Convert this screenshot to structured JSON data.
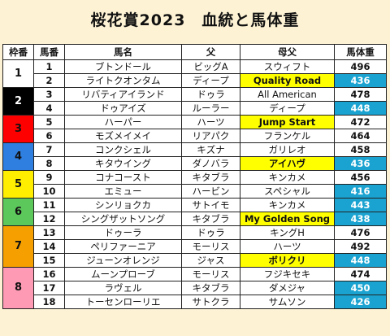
{
  "title": "桜花賞2023　血統と馬体重",
  "headers": [
    "枠番",
    "馬番",
    "馬名",
    "父",
    "母父",
    "馬体重"
  ],
  "colors": {
    "background": "#fdf2d4",
    "highlight_yellow": "#ffff00",
    "highlight_weight": "#1aa3d0"
  },
  "waku": [
    {
      "label": "1",
      "rows": 2,
      "bg": "#ffffff",
      "fg": "#111111"
    },
    {
      "label": "2",
      "rows": 2,
      "bg": "#000000",
      "fg": "#ffffff"
    },
    {
      "label": "3",
      "rows": 2,
      "bg": "#ff0000",
      "fg": "#111111"
    },
    {
      "label": "4",
      "rows": 2,
      "bg": "#2f7fe0",
      "fg": "#111111"
    },
    {
      "label": "5",
      "rows": 2,
      "bg": "#ffee00",
      "fg": "#111111"
    },
    {
      "label": "6",
      "rows": 2,
      "bg": "#5cc85c",
      "fg": "#111111"
    },
    {
      "label": "7",
      "rows": 3,
      "bg": "#f5a000",
      "fg": "#111111"
    },
    {
      "label": "8",
      "rows": 3,
      "bg": "#ff9ab4",
      "fg": "#111111"
    }
  ],
  "rows": [
    {
      "num": "1",
      "name": "ブトンドール",
      "sire": "ビッグA",
      "damsire": "スウィフト",
      "weight": "496",
      "damsire_hl": false,
      "weight_hl": false
    },
    {
      "num": "2",
      "name": "ライトクオンタム",
      "sire": "ディープ",
      "damsire": "Quality Road",
      "weight": "436",
      "damsire_hl": true,
      "weight_hl": true
    },
    {
      "num": "3",
      "name": "リバティアイランド",
      "sire": "ドゥラ",
      "damsire": "All American",
      "weight": "478",
      "damsire_hl": false,
      "weight_hl": false
    },
    {
      "num": "4",
      "name": "ドゥアイズ",
      "sire": "ルーラー",
      "damsire": "ディープ",
      "weight": "448",
      "damsire_hl": false,
      "weight_hl": true
    },
    {
      "num": "5",
      "name": "ハーパー",
      "sire": "ハーツ",
      "damsire": "Jump Start",
      "weight": "472",
      "damsire_hl": true,
      "weight_hl": false
    },
    {
      "num": "6",
      "name": "モズメイメイ",
      "sire": "リアパク",
      "damsire": "フランケル",
      "weight": "464",
      "damsire_hl": false,
      "weight_hl": false
    },
    {
      "num": "7",
      "name": "コンクシェル",
      "sire": "キズナ",
      "damsire": "ガリレオ",
      "weight": "458",
      "damsire_hl": false,
      "weight_hl": false
    },
    {
      "num": "8",
      "name": "キタウイング",
      "sire": "ダノバラ",
      "damsire": "アイハヴ",
      "weight": "436",
      "damsire_hl": true,
      "weight_hl": true
    },
    {
      "num": "9",
      "name": "コナコースト",
      "sire": "キタブラ",
      "damsire": "キンカメ",
      "weight": "456",
      "damsire_hl": false,
      "weight_hl": false
    },
    {
      "num": "10",
      "name": "エミュー",
      "sire": "ハービン",
      "damsire": "スペシャル",
      "weight": "416",
      "damsire_hl": false,
      "weight_hl": true
    },
    {
      "num": "11",
      "name": "シンリョクカ",
      "sire": "サトイモ",
      "damsire": "キンカメ",
      "weight": "443",
      "damsire_hl": false,
      "weight_hl": true
    },
    {
      "num": "12",
      "name": "シングザットソング",
      "sire": "キタブラ",
      "damsire": "My Golden Song",
      "weight": "438",
      "damsire_hl": true,
      "weight_hl": true
    },
    {
      "num": "13",
      "name": "ドゥーラ",
      "sire": "ドゥラ",
      "damsire": "キングH",
      "weight": "476",
      "damsire_hl": false,
      "weight_hl": false
    },
    {
      "num": "14",
      "name": "ペリファーニア",
      "sire": "モーリス",
      "damsire": "ハーツ",
      "weight": "492",
      "damsire_hl": false,
      "weight_hl": false
    },
    {
      "num": "15",
      "name": "ジューンオレンジ",
      "sire": "ジャス",
      "damsire": "ボリクリ",
      "weight": "448",
      "damsire_hl": true,
      "weight_hl": true
    },
    {
      "num": "16",
      "name": "ムーンプローブ",
      "sire": "モーリス",
      "damsire": "フジキセキ",
      "weight": "474",
      "damsire_hl": false,
      "weight_hl": false
    },
    {
      "num": "17",
      "name": "ラヴェル",
      "sire": "キタブラ",
      "damsire": "ダメジャ",
      "weight": "450",
      "damsire_hl": false,
      "weight_hl": true
    },
    {
      "num": "18",
      "name": "トーセンローリエ",
      "sire": "サトクラ",
      "damsire": "サムソン",
      "weight": "426",
      "damsire_hl": false,
      "weight_hl": true
    }
  ]
}
